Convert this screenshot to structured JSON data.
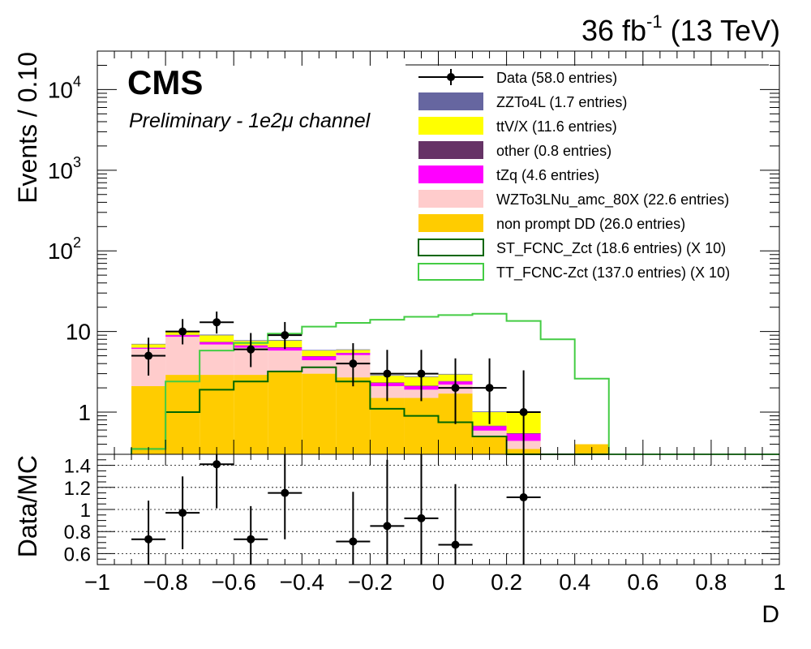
{
  "header": {
    "lumi": "36 fb",
    "lumi_sup": "-1",
    "energy": " (13 TeV)"
  },
  "cms_label": "CMS",
  "channel_label": "Preliminary - 1e2μ channel",
  "chart_data": [
    {
      "type": "bar",
      "stacked": true,
      "yscale": "log",
      "ylabel": "Events / 0.10",
      "xlim": [
        -1,
        1
      ],
      "ylim": [
        0.3,
        30000
      ],
      "y_ticks": [
        {
          "value": 1,
          "base": "1",
          "exp": ""
        },
        {
          "value": 10,
          "base": "10",
          "exp": ""
        },
        {
          "value": 100,
          "base": "10",
          "exp": "2"
        },
        {
          "value": 1000,
          "base": "10",
          "exp": "3"
        },
        {
          "value": 10000,
          "base": "10",
          "exp": "4"
        }
      ],
      "bin_edges": [
        -0.9,
        -0.8,
        -0.7,
        -0.6,
        -0.5,
        -0.4,
        -0.3,
        -0.2,
        -0.1,
        0.0,
        0.1,
        0.2,
        0.3,
        0.4,
        0.5
      ],
      "stack": [
        {
          "name": "non prompt DD (26.0 entries)",
          "color": "#ffcc00",
          "values": [
            2.1,
            2.9,
            2.9,
            2.9,
            3.2,
            3.0,
            2.7,
            1.5,
            1.5,
            1.7,
            0.5,
            0.35,
            0.3,
            0.4
          ]
        },
        {
          "name": "WZTo3LNu_amc_80X (22.6 entries)",
          "color": "#ffcccc",
          "values": [
            4.0,
            5.7,
            4.0,
            3.4,
            2.6,
            1.4,
            2.4,
            0.6,
            0.4,
            0.5,
            0.09,
            0.09,
            0,
            0
          ]
        },
        {
          "name": "tZq (4.6 entries)",
          "color": "#ff00ff",
          "values": [
            0.18,
            0.4,
            0.45,
            0.4,
            0.5,
            0.5,
            0.3,
            0.2,
            0.2,
            0.2,
            0.08,
            0.1,
            0,
            0
          ]
        },
        {
          "name": "other (0.8 entries)",
          "color": "#663366",
          "values": [
            0.05,
            0.1,
            0.1,
            0.05,
            0.1,
            0.05,
            0.05,
            0.03,
            0.03,
            0.03,
            0.01,
            0.01,
            0,
            0
          ]
        },
        {
          "name": "ttV/X (11.6 entries)",
          "color": "#ffff00",
          "values": [
            0.6,
            0.9,
            1.5,
            0.9,
            1.3,
            0.85,
            0.45,
            0.5,
            0.6,
            0.5,
            0.32,
            0.45,
            0,
            0
          ]
        },
        {
          "name": "ZZTo4L (1.7 entries)",
          "color": "#6666a0",
          "values": [
            0.1,
            0.15,
            0.2,
            0.15,
            0.15,
            0.1,
            0.1,
            0.05,
            0.05,
            0.05,
            0.02,
            0.02,
            0,
            0
          ]
        }
      ],
      "signals": [
        {
          "name": "ST_FCNC_Zct (18.6 entries) (X 10)",
          "color": "#006600",
          "values": [
            0.35,
            1.0,
            1.9,
            2.4,
            3.2,
            3.6,
            2.4,
            1.1,
            0.9,
            0.75,
            0.5,
            0.3,
            0.3,
            0.3
          ]
        },
        {
          "name": "TT_FCNC-Zct (137.0 entries) (X 10)",
          "color": "#44cc44",
          "values": [
            0.35,
            2.4,
            5.8,
            7.2,
            9.4,
            11.5,
            12.8,
            14.0,
            15.2,
            16.0,
            16.6,
            13.5,
            8.0,
            2.6
          ]
        }
      ],
      "data": {
        "name": "Data (58.0 entries)",
        "color": "#000000",
        "x": [
          -0.85,
          -0.75,
          -0.65,
          -0.55,
          -0.45,
          -0.25,
          -0.15,
          -0.05,
          0.05,
          0.15,
          0.25
        ],
        "y": [
          5,
          10,
          13,
          6,
          9,
          4,
          3,
          3,
          2,
          2,
          1
        ],
        "yerr_low": [
          2.16,
          3.08,
          3.57,
          2.38,
          2.94,
          1.91,
          1.63,
          1.63,
          1.29,
          1.29,
          0.83
        ],
        "yerr_high": [
          3.38,
          4.27,
          4.67,
          3.58,
          4.11,
          3.16,
          2.92,
          2.92,
          2.64,
          2.64,
          2.3
        ]
      },
      "legend_position": "top-right",
      "legend": [
        {
          "label": "Data (58.0 entries)",
          "style": "marker",
          "color": "#000000"
        },
        {
          "label": "ZZTo4L (1.7 entries)",
          "style": "fill",
          "color": "#6666a0"
        },
        {
          "label": "ttV/X (11.6 entries)",
          "style": "fill",
          "color": "#ffff00"
        },
        {
          "label": "other (0.8 entries)",
          "style": "fill",
          "color": "#663366"
        },
        {
          "label": "tZq (4.6 entries)",
          "style": "fill",
          "color": "#ff00ff"
        },
        {
          "label": "WZTo3LNu_amc_80X (22.6 entries)",
          "style": "fill",
          "color": "#ffcccc"
        },
        {
          "label": "non prompt DD (26.0 entries)",
          "style": "fill",
          "color": "#ffcc00"
        },
        {
          "label": "ST_FCNC_Zct (18.6 entries) (X 10)",
          "style": "line",
          "color": "#006600"
        },
        {
          "label": "TT_FCNC-Zct (137.0 entries) (X 10)",
          "style": "line",
          "color": "#44cc44"
        }
      ]
    },
    {
      "type": "scatter",
      "ylabel": "Data/MC",
      "xlabel": "D",
      "xlim": [
        -1,
        1
      ],
      "ylim": [
        0.5,
        1.5
      ],
      "x_ticks": [
        -1,
        -0.8,
        -0.6,
        -0.4,
        -0.2,
        0,
        0.2,
        0.4,
        0.6,
        0.8,
        1
      ],
      "x_tick_labels": [
        "−1",
        "−0.8",
        "−0.6",
        "−0.4",
        "−0.2",
        "0",
        "0.2",
        "0.4",
        "0.6",
        "0.8",
        "1"
      ],
      "y_ticks": [
        0.6,
        0.8,
        1.0,
        1.2,
        1.4
      ],
      "y_tick_labels": [
        "0.6",
        "0.8",
        "1",
        "1.2",
        "1.4"
      ],
      "grid_y": true,
      "points": {
        "x": [
          -0.85,
          -0.75,
          -0.65,
          -0.55,
          -0.45,
          -0.25,
          -0.15,
          -0.05,
          0.05,
          0.25
        ],
        "y": [
          0.73,
          0.97,
          1.41,
          0.73,
          1.15,
          0.71,
          0.85,
          0.92,
          0.68,
          1.11
        ],
        "yerr_low": [
          0.35,
          0.33,
          0.4,
          0.3,
          0.42,
          0.36,
          0.45,
          0.48,
          0.45,
          0.85
        ],
        "yerr_high": [
          0.35,
          0.33,
          0.4,
          0.3,
          0.42,
          0.45,
          0.6,
          0.6,
          0.55,
          0.85
        ]
      }
    }
  ]
}
